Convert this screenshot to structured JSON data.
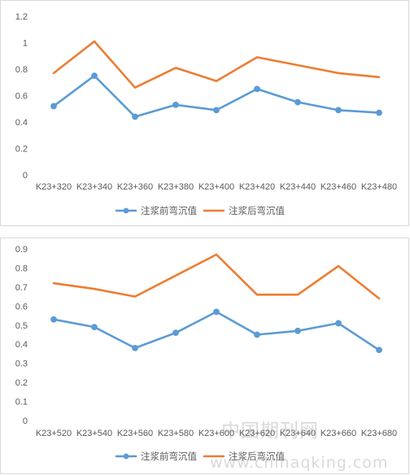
{
  "colors": {
    "series1": "#5b9bd5",
    "series2": "#ed7d31",
    "grid": "#d9d9d9",
    "text": "#595959"
  },
  "chart_data": [
    {
      "type": "line",
      "categories": [
        "K23+320",
        "K23+340",
        "K23+360",
        "K23+380",
        "K23+400",
        "K23+420",
        "K23+440",
        "K23+460",
        "K23+480"
      ],
      "ylim": [
        0,
        1.2
      ],
      "yticks": [
        "0",
        "0.2",
        "0.4",
        "0.6",
        "0.8",
        "1",
        "1.2"
      ],
      "grid": false,
      "legend": "bottom",
      "series": [
        {
          "name": "注浆前弯沉值",
          "marker": true,
          "values": [
            0.52,
            0.75,
            0.44,
            0.53,
            0.49,
            0.65,
            0.55,
            0.49,
            0.47
          ]
        },
        {
          "name": "注浆后弯沉值",
          "marker": false,
          "values": [
            0.77,
            1.01,
            0.66,
            0.81,
            0.71,
            0.89,
            0.83,
            0.77,
            0.74
          ]
        }
      ]
    },
    {
      "type": "line",
      "categories": [
        "K23+520",
        "K23+540",
        "K23+560",
        "K23+580",
        "K23+600",
        "K23+620",
        "K23+640",
        "K23+660",
        "K23+680"
      ],
      "ylim": [
        0,
        0.9
      ],
      "yticks": [
        "0",
        "0.1",
        "0.2",
        "0.3",
        "0.4",
        "0.5",
        "0.6",
        "0.7",
        "0.8",
        "0.9"
      ],
      "grid": false,
      "legend": "bottom",
      "series": [
        {
          "name": "注浆前弯沉值",
          "marker": true,
          "values": [
            0.53,
            0.49,
            0.38,
            0.46,
            0.57,
            0.45,
            0.47,
            0.51,
            0.37
          ]
        },
        {
          "name": "注浆后弯沉值",
          "marker": false,
          "values": [
            0.72,
            0.69,
            0.65,
            0.76,
            0.87,
            0.66,
            0.66,
            0.81,
            0.64
          ]
        }
      ]
    }
  ],
  "watermark": {
    "line1": "中国期刊网",
    "line2": "www.chinaqking.com"
  }
}
